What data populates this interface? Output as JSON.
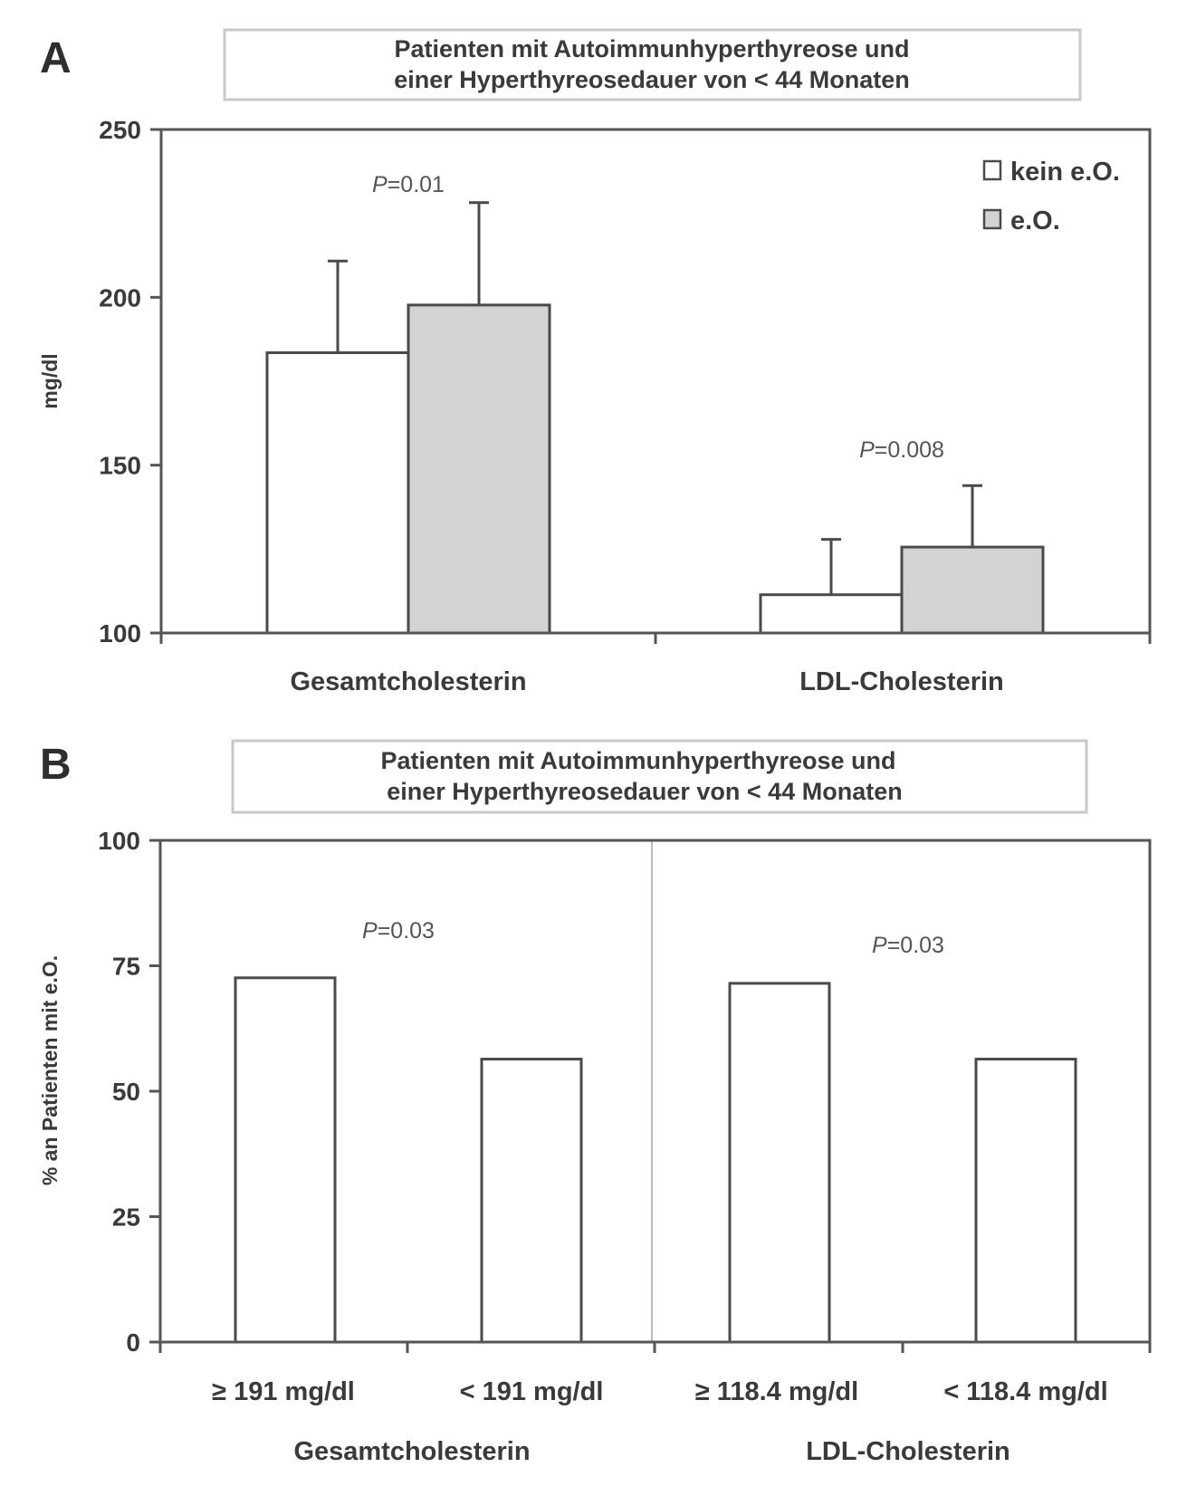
{
  "colors": {
    "axis": "#555555",
    "bar_kein": "#ffffff",
    "bar_eo": "#d3d3d3",
    "bar_stroke": "#4a4a4a",
    "title_box_stroke": "#c8c8c8",
    "divider": "#bbbbbb"
  },
  "chart_data": [
    {
      "panel": "A",
      "type": "bar",
      "title": "Patienten mit Autoimmunhyperthyreose und einer Hyperthyreosedauer von < 44 Monaten",
      "title_lines": [
        "Patienten mit Autoimmunhyperthyreose und",
        "einer Hyperthyreosedauer von < 44 Monaten"
      ],
      "xlabel": "",
      "ylabel": "mg/dl",
      "ylim": [
        100,
        250
      ],
      "yticks": [
        100,
        150,
        200,
        250
      ],
      "ytick_labels": [
        "100",
        "150",
        "200",
        "250"
      ],
      "grid": false,
      "legend_position": "top-right",
      "categories": [
        "Gesamtcholesterin",
        "LDL-Cholesterin"
      ],
      "series": [
        {
          "name": "kein e.O.",
          "values": [
            183.5,
            111.4
          ],
          "error_upper": [
            210.8,
            127.9
          ]
        },
        {
          "name": "e.O.",
          "values": [
            197.7,
            125.6
          ],
          "error_upper": [
            228.2,
            143.9
          ]
        }
      ],
      "annotations": [
        {
          "text_italic": "P",
          "text_rest": "=0.01",
          "category": "Gesamtcholesterin"
        },
        {
          "text_italic": "P",
          "text_rest": "=0.008",
          "category": "LDL-Cholesterin"
        }
      ]
    },
    {
      "panel": "B",
      "type": "bar",
      "title": "Patienten mit Autoimmunhyperthyreose und einer Hyperthyreosedauer von < 44 Monaten",
      "title_lines": [
        "Patienten mit Autoimmunhyperthyreose und",
        "einer Hyperthyreosedauer von < 44 Monaten"
      ],
      "xlabel": "",
      "ylabel": "% an Patienten mit e.O.",
      "ylim": [
        0,
        100
      ],
      "yticks": [
        0,
        25,
        50,
        75,
        100
      ],
      "ytick_labels": [
        "0",
        "25",
        "50",
        "75",
        "100"
      ],
      "grid": false,
      "categories": [
        "≥ 191 mg/dl",
        "< 191 mg/dl",
        "≥ 118.4 mg/dl",
        "< 118.4 mg/dl"
      ],
      "groups": [
        "Gesamtcholesterin",
        "LDL-Cholesterin"
      ],
      "values": [
        72.6,
        56.4,
        71.5,
        56.4
      ],
      "annotations": [
        {
          "text_italic": "P",
          "text_rest": "=0.03",
          "group": "Gesamtcholesterin"
        },
        {
          "text_italic": "P",
          "text_rest": "=0.03",
          "group": "LDL-Cholesterin"
        }
      ]
    }
  ]
}
